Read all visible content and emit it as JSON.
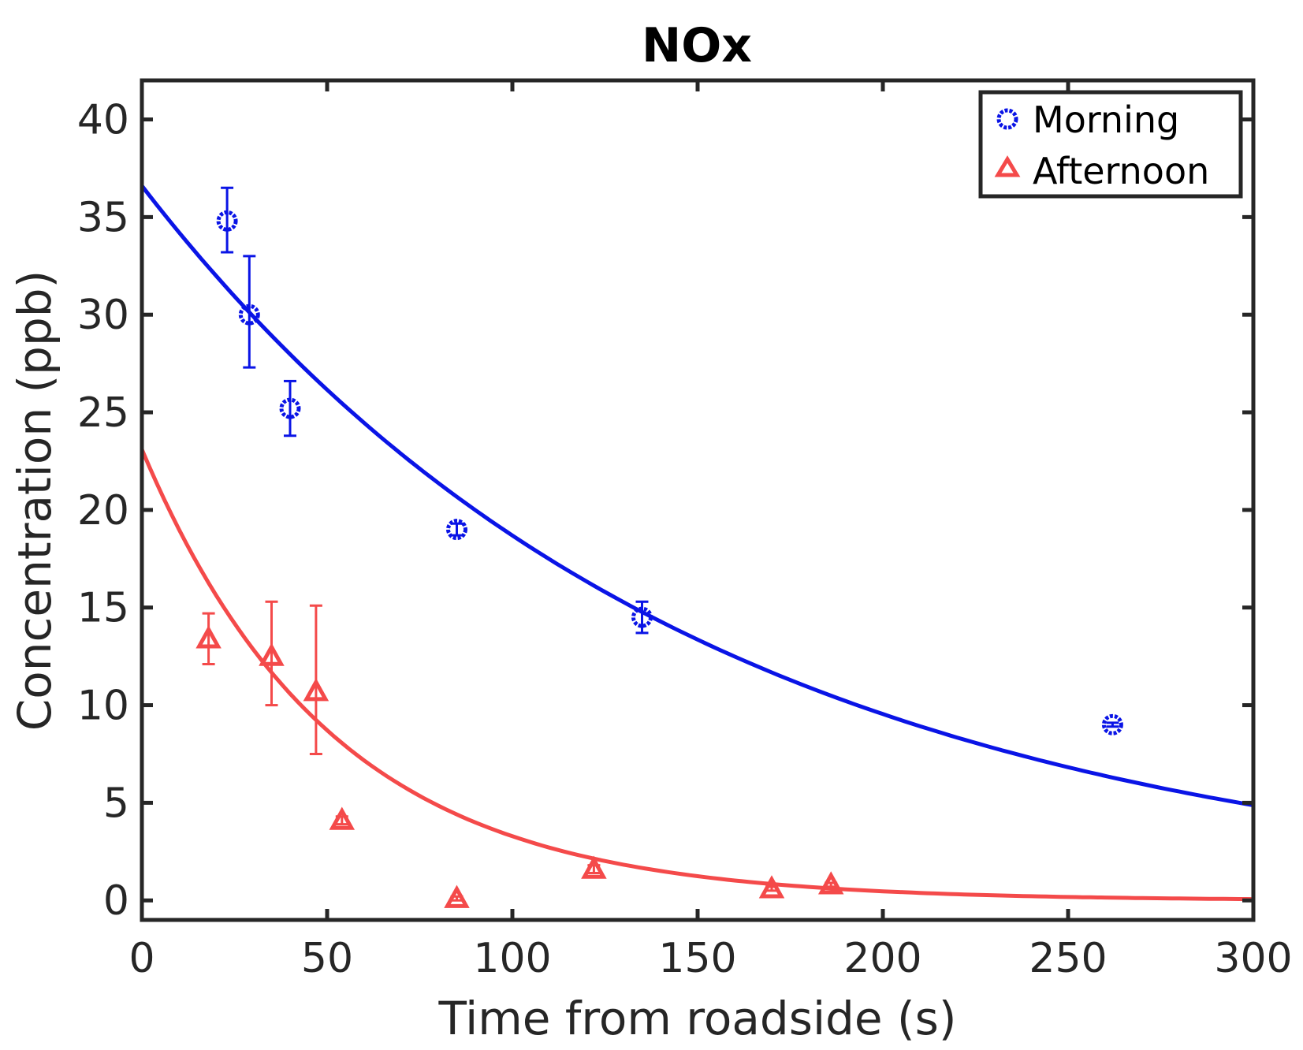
{
  "chart_data": {
    "type": "scatter",
    "title": "NOx",
    "xlabel": "Time from roadside (s)",
    "ylabel": "Concentration (ppb)",
    "xlim": [
      0,
      300
    ],
    "ylim": [
      -1,
      42
    ],
    "xticks": [
      0,
      50,
      100,
      150,
      200,
      250,
      300
    ],
    "yticks": [
      0,
      5,
      10,
      15,
      20,
      25,
      30,
      35,
      40
    ],
    "grid": false,
    "legend_position": "top-right",
    "series": [
      {
        "name": "Morning",
        "marker": "circle",
        "color": "#0a14e6",
        "points": [
          {
            "x": 23,
            "y": 34.8,
            "err_low": 1.6,
            "err_high": 1.7
          },
          {
            "x": 29,
            "y": 30.0,
            "err_low": 2.7,
            "err_high": 3.0
          },
          {
            "x": 40,
            "y": 25.2,
            "err_low": 1.4,
            "err_high": 1.4
          },
          {
            "x": 85,
            "y": 19.0,
            "err_low": 0.3,
            "err_high": 0.3
          },
          {
            "x": 135,
            "y": 14.5,
            "err_low": 0.8,
            "err_high": 0.8
          },
          {
            "x": 262,
            "y": 9.0,
            "err_low": 0.1,
            "err_high": 0.1
          }
        ],
        "fit": {
          "model": "exponential",
          "a": 36.6,
          "b": 0.00672
        }
      },
      {
        "name": "Afternoon",
        "marker": "triangle",
        "color": "#f44a4a",
        "points": [
          {
            "x": 18,
            "y": 13.4,
            "err_low": 1.3,
            "err_high": 1.3
          },
          {
            "x": 35,
            "y": 12.5,
            "err_low": 2.5,
            "err_high": 2.8
          },
          {
            "x": 47,
            "y": 10.7,
            "err_low": 3.2,
            "err_high": 4.4
          },
          {
            "x": 54,
            "y": 4.1,
            "err_low": 0.2,
            "err_high": 0.2
          },
          {
            "x": 85,
            "y": 0.1,
            "err_low": 0.1,
            "err_high": 0.1
          },
          {
            "x": 122,
            "y": 1.6,
            "err_low": 0.2,
            "err_high": 0.2
          },
          {
            "x": 170,
            "y": 0.6,
            "err_low": 0.1,
            "err_high": 0.1
          },
          {
            "x": 186,
            "y": 0.8,
            "err_low": 0.1,
            "err_high": 0.1
          }
        ],
        "fit": {
          "model": "exponential",
          "a": 23.1,
          "b": 0.0195
        }
      }
    ]
  }
}
